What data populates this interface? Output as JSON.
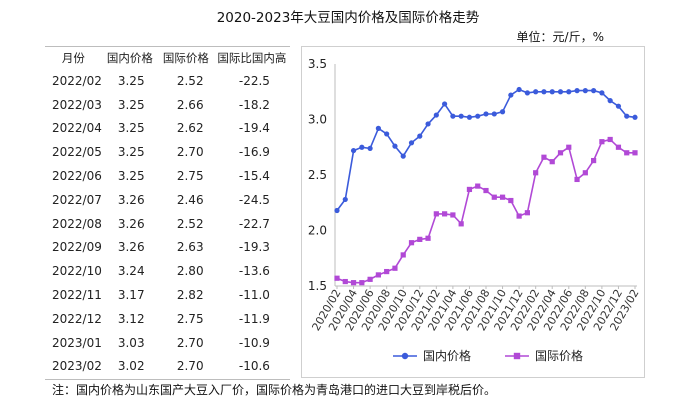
{
  "title": "2020-2023年大豆国内价格及国际价格走势",
  "unit": "单位：元/斤，%",
  "table": {
    "headers": [
      "月份",
      "国内价格",
      "国际价格",
      "国际比国内高"
    ],
    "rows": [
      [
        "2022/02",
        "3.25",
        "2.52",
        "-22.5"
      ],
      [
        "2022/03",
        "3.25",
        "2.66",
        "-18.2"
      ],
      [
        "2022/04",
        "3.25",
        "2.62",
        "-19.4"
      ],
      [
        "2022/05",
        "3.25",
        "2.70",
        "-16.9"
      ],
      [
        "2022/06",
        "3.25",
        "2.75",
        "-15.4"
      ],
      [
        "2022/07",
        "3.26",
        "2.46",
        "-24.5"
      ],
      [
        "2022/08",
        "3.26",
        "2.52",
        "-22.7"
      ],
      [
        "2022/09",
        "3.26",
        "2.63",
        "-19.3"
      ],
      [
        "2022/10",
        "3.24",
        "2.80",
        "-13.6"
      ],
      [
        "2022/11",
        "3.17",
        "2.82",
        "-11.0"
      ],
      [
        "2022/12",
        "3.12",
        "2.75",
        "-11.9"
      ],
      [
        "2023/01",
        "3.03",
        "2.70",
        "-10.9"
      ],
      [
        "2023/02",
        "3.02",
        "2.70",
        "-10.6"
      ]
    ]
  },
  "note": "注：国内价格为山东国产大豆入厂价，国际价格为青岛港口的进口大豆到岸税后价。",
  "chart_data": {
    "type": "line",
    "ylim": [
      1.5,
      3.5
    ],
    "yticks": [
      "1.5",
      "2.0",
      "2.5",
      "3.0",
      "3.5"
    ],
    "x_tick_labels": [
      "2020/02",
      "2020/04",
      "2020/06",
      "2020/08",
      "2020/10",
      "2020/12",
      "2021/02",
      "2021/04",
      "2021/06",
      "2021/08",
      "2021/10",
      "2021/12",
      "2022/02",
      "2022/04",
      "2022/06",
      "2022/08",
      "2022/10",
      "2022/12",
      "2023/02"
    ],
    "x": [
      "2020/02",
      "2020/03",
      "2020/04",
      "2020/05",
      "2020/06",
      "2020/07",
      "2020/08",
      "2020/09",
      "2020/10",
      "2020/11",
      "2020/12",
      "2021/01",
      "2021/02",
      "2021/03",
      "2021/04",
      "2021/05",
      "2021/06",
      "2021/07",
      "2021/08",
      "2021/09",
      "2021/10",
      "2021/11",
      "2021/12",
      "2022/01",
      "2022/02",
      "2022/03",
      "2022/04",
      "2022/05",
      "2022/06",
      "2022/07",
      "2022/08",
      "2022/09",
      "2022/10",
      "2022/11",
      "2022/12",
      "2023/01",
      "2023/02"
    ],
    "series": [
      {
        "name": "国内价格",
        "color": "#3b5bdb",
        "marker": "circle",
        "values": [
          2.18,
          2.28,
          2.72,
          2.75,
          2.74,
          2.92,
          2.87,
          2.76,
          2.67,
          2.79,
          2.85,
          2.96,
          3.04,
          3.14,
          3.03,
          3.03,
          3.02,
          3.03,
          3.05,
          3.05,
          3.07,
          3.22,
          3.27,
          3.24,
          3.25,
          3.25,
          3.25,
          3.25,
          3.25,
          3.26,
          3.26,
          3.26,
          3.24,
          3.17,
          3.12,
          3.03,
          3.02
        ]
      },
      {
        "name": "国际价格",
        "color": "#b149d6",
        "marker": "square",
        "values": [
          1.57,
          1.54,
          1.53,
          1.53,
          1.56,
          1.6,
          1.63,
          1.66,
          1.78,
          1.89,
          1.92,
          1.93,
          2.15,
          2.15,
          2.14,
          2.06,
          2.37,
          2.4,
          2.36,
          2.3,
          2.3,
          2.27,
          2.13,
          2.16,
          2.52,
          2.66,
          2.62,
          2.7,
          2.75,
          2.46,
          2.52,
          2.63,
          2.8,
          2.82,
          2.75,
          2.7,
          2.7
        ]
      }
    ],
    "legend_position": "bottom"
  }
}
